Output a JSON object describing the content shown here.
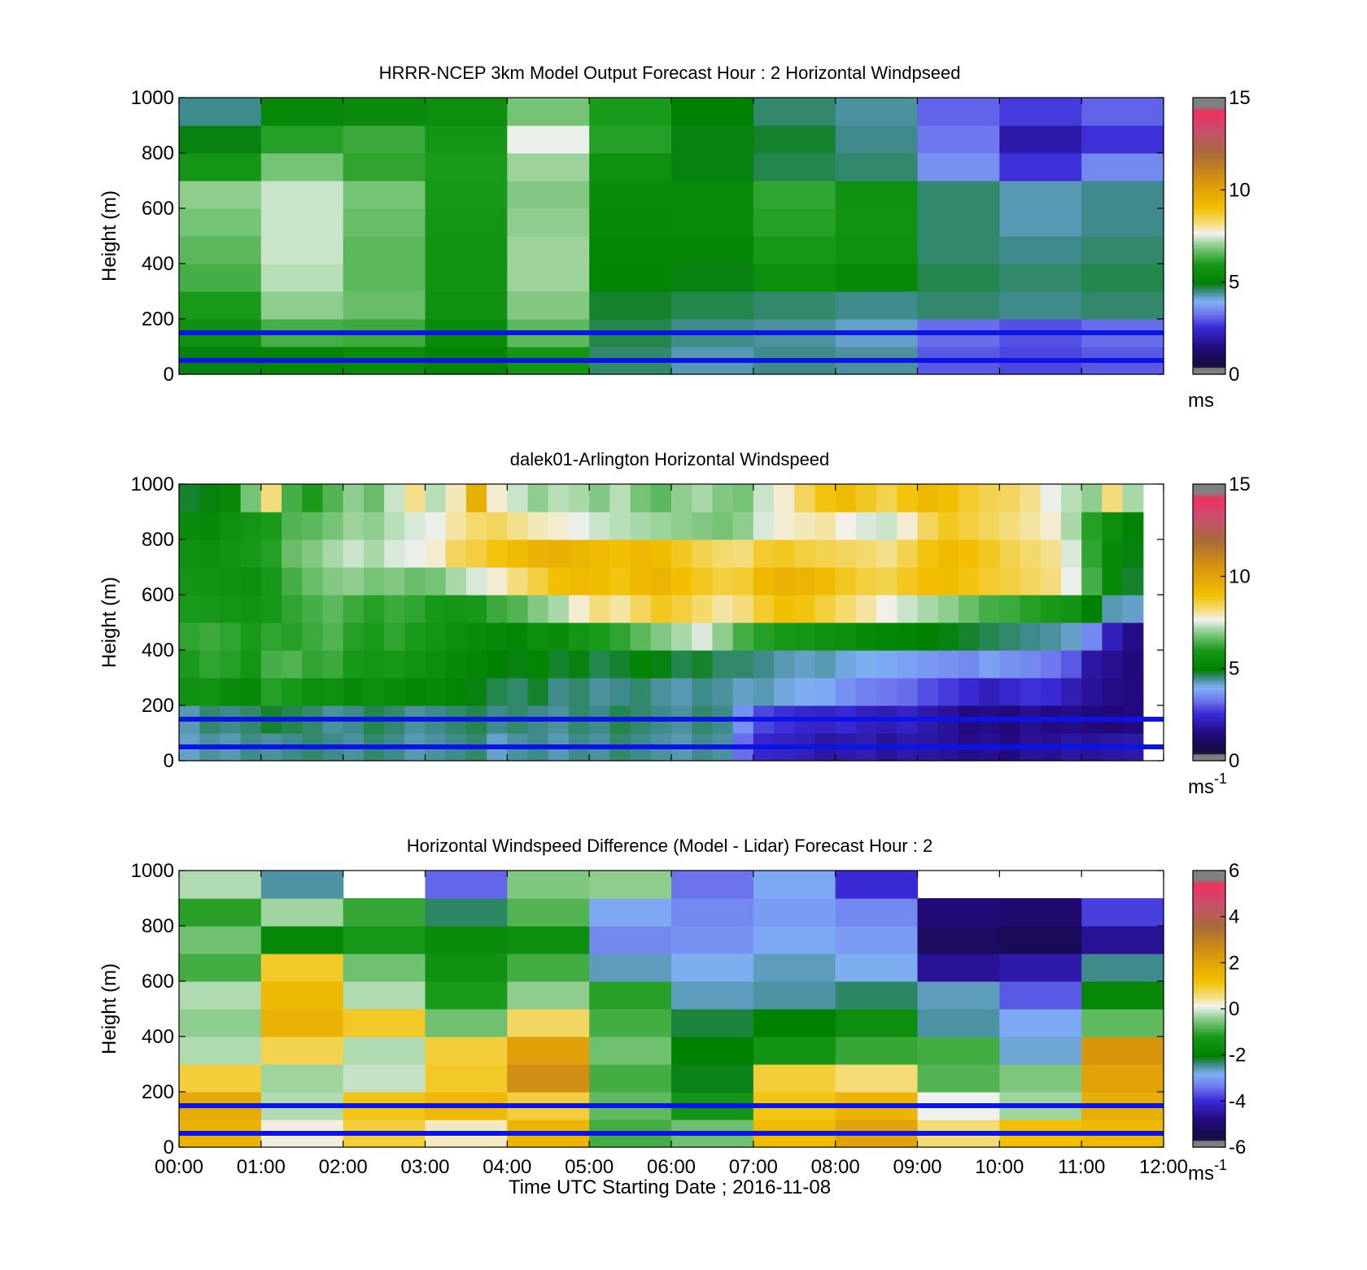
{
  "figure": {
    "xlabel": "Time UTC  Starting Date ; 2016-11-08",
    "x_ticks": [
      "00:00",
      "01:00",
      "02:00",
      "03:00",
      "04:00",
      "05:00",
      "06:00",
      "07:00",
      "08:00",
      "09:00",
      "10:00",
      "11:00",
      "12:00"
    ]
  },
  "chart_data": [
    {
      "type": "heatmap",
      "title": "HRRR-NCEP 3km Model Output   Forecast Hour : 2 Horizontal Windpseed",
      "ylabel": "Height (m)",
      "y_ticks": [
        "0",
        "200",
        "400",
        "600",
        "800",
        "1000"
      ],
      "ylim": [
        0,
        1000
      ],
      "xlim": [
        "00:00",
        "12:00"
      ],
      "colorbar": {
        "min": 0,
        "max": 15,
        "ticks": [
          "0",
          "5",
          "10",
          "15"
        ],
        "unit": "ms",
        "unit_sup": ""
      },
      "reference_lines_m": [
        50,
        150
      ],
      "reference_line_color": "#0a14e6",
      "time_bins": [
        "00:00",
        "01:00",
        "02:00",
        "03:00",
        "04:00",
        "05:00",
        "06:00",
        "07:00",
        "08:00",
        "09:00",
        "10:00",
        "11:00"
      ],
      "height_levels_m": [
        0,
        100,
        200,
        300,
        400,
        500,
        600,
        700,
        800,
        900,
        1000
      ],
      "values": [
        [
          4.9,
          5.2,
          5.4,
          5.1,
          5.8,
          4.6,
          4.3,
          4.5,
          4.4,
          3.0,
          2.8,
          3.0
        ],
        [
          5.6,
          6.4,
          6.3,
          5.4,
          6.6,
          4.7,
          4.5,
          4.4,
          4.2,
          3.2,
          2.9,
          3.2
        ],
        [
          6.0,
          7.0,
          6.7,
          5.6,
          6.9,
          4.8,
          4.7,
          4.6,
          4.5,
          4.6,
          4.5,
          4.6
        ],
        [
          6.4,
          7.3,
          6.6,
          5.7,
          7.1,
          5.1,
          4.9,
          5.5,
          5.3,
          4.7,
          4.6,
          4.7
        ],
        [
          6.6,
          7.4,
          6.6,
          5.7,
          7.1,
          5.2,
          5.2,
          5.9,
          5.6,
          4.6,
          4.5,
          4.6
        ],
        [
          6.8,
          7.4,
          6.7,
          5.8,
          7.0,
          5.3,
          5.4,
          6.1,
          5.7,
          4.6,
          4.3,
          4.5
        ],
        [
          7.0,
          7.4,
          6.8,
          5.9,
          6.9,
          5.4,
          5.4,
          6.2,
          5.6,
          4.6,
          4.3,
          4.5
        ],
        [
          5.8,
          6.8,
          6.2,
          6.0,
          7.1,
          5.6,
          4.9,
          4.7,
          4.6,
          3.6,
          2.6,
          3.5
        ],
        [
          4.9,
          6.1,
          6.3,
          5.8,
          7.6,
          6.1,
          4.9,
          4.8,
          4.5,
          3.3,
          2.0,
          2.6
        ],
        [
          4.5,
          5.3,
          5.4,
          5.5,
          6.8,
          6.0,
          5.0,
          4.6,
          4.4,
          3.1,
          2.7,
          3.1
        ]
      ]
    },
    {
      "type": "heatmap",
      "title": "dalek01-Arlington  Horizontal Windspeed",
      "ylabel": "Height (m)",
      "y_ticks": [
        "0",
        "200",
        "400",
        "600",
        "800",
        "1000"
      ],
      "ylim": [
        0,
        1000
      ],
      "xlim": [
        "00:00",
        "12:00"
      ],
      "colorbar": {
        "min": 0,
        "max": 15,
        "ticks": [
          "0",
          "5",
          "10",
          "15"
        ],
        "unit": "ms",
        "unit_sup": "-1"
      },
      "reference_lines_m": [
        50,
        150
      ],
      "reference_line_color": "#0a14e6",
      "data_end": "11:45",
      "time_bins": [
        "00:00",
        "00:15",
        "00:30",
        "00:45",
        "01:00",
        "01:15",
        "01:30",
        "01:45",
        "02:00",
        "02:15",
        "02:30",
        "02:45",
        "03:00",
        "03:15",
        "03:30",
        "03:45",
        "04:00",
        "04:15",
        "04:30",
        "04:45",
        "05:00",
        "05:15",
        "05:30",
        "05:45",
        "06:00",
        "06:15",
        "06:30",
        "06:45",
        "07:00",
        "07:15",
        "07:30",
        "07:45",
        "08:00",
        "08:15",
        "08:30",
        "08:45",
        "09:00",
        "09:15",
        "09:30",
        "09:45",
        "10:00",
        "10:15",
        "10:30",
        "10:45",
        "11:00",
        "11:15",
        "11:30"
      ],
      "height_levels_m": [
        0,
        100,
        200,
        300,
        400,
        500,
        600,
        700,
        800,
        900,
        1000
      ],
      "values": [
        [
          4.2,
          4.4,
          4.3,
          4.5,
          4.4,
          4.5,
          4.6,
          4.5,
          4.4,
          4.6,
          4.5,
          4.3,
          4.4,
          4.5,
          4.6,
          4.2,
          4.4,
          4.5,
          4.3,
          4.5,
          4.4,
          4.6,
          4.5,
          4.4,
          4.3,
          4.5,
          4.4,
          3.2,
          2.4,
          2.3,
          2.2,
          1.9,
          2.0,
          2.1,
          1.8,
          2.0,
          1.9,
          1.8,
          1.6,
          1.7,
          1.5,
          1.8,
          1.7,
          1.9,
          1.8,
          1.9,
          2.0
        ],
        [
          4.3,
          4.6,
          4.5,
          4.6,
          4.8,
          4.7,
          4.6,
          4.4,
          4.5,
          4.7,
          4.6,
          4.4,
          4.5,
          4.6,
          4.7,
          4.5,
          4.6,
          4.5,
          4.4,
          4.6,
          4.5,
          4.7,
          4.6,
          4.5,
          4.4,
          4.6,
          4.5,
          3.6,
          2.8,
          2.6,
          2.4,
          2.3,
          2.5,
          2.2,
          2.1,
          2.3,
          2.0,
          1.8,
          1.5,
          1.6,
          1.4,
          1.7,
          1.5,
          1.6,
          1.4,
          1.3,
          1.5
        ],
        [
          5.6,
          5.7,
          5.4,
          5.3,
          6.1,
          5.9,
          5.5,
          5.6,
          5.3,
          5.5,
          5.4,
          5.2,
          5.3,
          5.1,
          4.9,
          4.7,
          4.6,
          4.8,
          4.5,
          4.6,
          4.4,
          4.5,
          4.6,
          4.4,
          4.3,
          4.5,
          4.4,
          4.2,
          4.3,
          4.1,
          4.0,
          3.9,
          3.6,
          3.4,
          3.3,
          3.2,
          2.9,
          2.7,
          2.5,
          2.2,
          2.4,
          2.6,
          2.5,
          2.1,
          1.8,
          1.6,
          1.5
        ],
        [
          6.0,
          6.2,
          6.1,
          5.8,
          6.4,
          6.5,
          6.2,
          6.3,
          5.9,
          5.8,
          5.9,
          5.7,
          5.5,
          5.3,
          5.2,
          5.0,
          4.9,
          5.1,
          4.8,
          4.9,
          4.7,
          4.8,
          5.1,
          4.9,
          4.7,
          4.8,
          4.6,
          4.6,
          4.5,
          4.3,
          4.2,
          4.3,
          4.1,
          4.0,
          3.9,
          3.8,
          3.7,
          3.6,
          3.5,
          3.8,
          3.6,
          3.5,
          3.3,
          3.0,
          1.9,
          1.7,
          1.4
        ],
        [
          6.2,
          6.3,
          6.2,
          6.0,
          6.2,
          6.1,
          6.3,
          6.5,
          6.1,
          6.0,
          6.2,
          6.0,
          5.8,
          5.5,
          5.4,
          5.3,
          5.2,
          5.5,
          5.4,
          5.8,
          6.0,
          6.2,
          6.6,
          6.9,
          7.2,
          7.5,
          7.0,
          6.4,
          6.1,
          5.9,
          5.8,
          5.6,
          5.5,
          5.3,
          5.2,
          5.1,
          5.0,
          4.9,
          4.8,
          4.7,
          4.6,
          4.5,
          4.4,
          4.2,
          3.5,
          2.2,
          1.6
        ],
        [
          6.0,
          5.9,
          5.8,
          5.7,
          5.9,
          6.2,
          6.4,
          6.6,
          6.3,
          6.1,
          6.3,
          6.2,
          5.9,
          5.8,
          5.9,
          6.3,
          6.5,
          6.9,
          7.2,
          7.8,
          8.2,
          8.0,
          8.4,
          8.8,
          8.6,
          8.3,
          8.0,
          8.2,
          8.7,
          9.0,
          8.9,
          8.6,
          8.3,
          8.0,
          7.7,
          7.4,
          7.2,
          7.0,
          6.7,
          6.4,
          6.3,
          6.1,
          5.9,
          5.7,
          5.0,
          4.3,
          4.2
        ],
        [
          5.8,
          5.7,
          5.6,
          5.5,
          5.9,
          6.4,
          6.7,
          6.9,
          7.0,
          6.8,
          6.9,
          6.7,
          6.8,
          7.2,
          7.5,
          7.8,
          8.2,
          8.6,
          9.0,
          9.2,
          9.1,
          8.9,
          9.3,
          9.4,
          9.0,
          8.8,
          8.6,
          8.7,
          9.3,
          9.5,
          9.4,
          9.2,
          8.8,
          8.6,
          8.5,
          8.8,
          9.0,
          9.1,
          8.9,
          8.7,
          8.6,
          8.4,
          8.2,
          7.6,
          6.4,
          5.3,
          4.8
        ],
        [
          5.6,
          5.5,
          5.7,
          5.9,
          6.1,
          6.7,
          6.9,
          7.2,
          7.4,
          7.2,
          7.5,
          7.6,
          7.8,
          8.4,
          8.6,
          8.9,
          9.2,
          9.5,
          9.6,
          9.4,
          9.2,
          9.0,
          9.3,
          9.1,
          8.8,
          8.5,
          8.3,
          8.2,
          8.7,
          8.8,
          8.6,
          8.5,
          8.4,
          8.3,
          8.1,
          8.5,
          8.9,
          9.2,
          9.0,
          8.8,
          8.5,
          8.3,
          8.1,
          7.5,
          6.2,
          5.3,
          4.9
        ],
        [
          5.4,
          5.3,
          5.6,
          5.8,
          6.0,
          6.5,
          6.6,
          6.8,
          7.1,
          7.0,
          7.3,
          7.5,
          7.6,
          8.0,
          8.3,
          8.4,
          8.1,
          7.9,
          7.8,
          7.6,
          7.4,
          7.3,
          7.2,
          7.1,
          7.0,
          6.9,
          6.8,
          7.0,
          7.5,
          7.8,
          7.9,
          8.0,
          7.7,
          7.5,
          7.4,
          7.8,
          8.4,
          8.8,
          8.6,
          8.4,
          8.2,
          8.0,
          7.8,
          7.2,
          6.1,
          5.5,
          5.1
        ],
        [
          4.8,
          4.9,
          5.3,
          6.8,
          8.2,
          6.4,
          6.0,
          6.5,
          7.0,
          6.7,
          7.4,
          8.1,
          7.3,
          7.9,
          9.6,
          7.8,
          7.4,
          7.0,
          7.3,
          7.2,
          6.9,
          7.3,
          6.8,
          6.6,
          7.0,
          7.2,
          6.9,
          6.8,
          7.4,
          7.8,
          8.4,
          8.9,
          9.2,
          8.8,
          8.5,
          8.9,
          9.3,
          9.0,
          8.7,
          8.5,
          8.4,
          8.1,
          7.6,
          7.3,
          7.0,
          8.2,
          7.2
        ]
      ]
    },
    {
      "type": "heatmap",
      "title": "Horizontal Windspeed Difference (Model - Lidar) Forecast Hour : 2",
      "ylabel": "Height (m)",
      "y_ticks": [
        "0",
        "200",
        "400",
        "600",
        "800",
        "1000"
      ],
      "ylim": [
        0,
        1000
      ],
      "xlim": [
        "00:00",
        "12:00"
      ],
      "colorbar": {
        "min": -6,
        "max": 6,
        "ticks": [
          "-6",
          "-4",
          "-2",
          "0",
          "2",
          "4",
          "6"
        ],
        "unit": "ms",
        "unit_sup": "-1"
      },
      "reference_lines_m": [
        50,
        150
      ],
      "reference_line_color": "#0a14e6",
      "time_bins": [
        "00:00",
        "01:00",
        "02:00",
        "03:00",
        "04:00",
        "05:00",
        "06:00",
        "07:00",
        "08:00",
        "09:00",
        "10:00",
        "11:00"
      ],
      "height_levels_m": [
        0,
        100,
        200,
        300,
        400,
        500,
        600,
        700,
        800,
        900,
        1000
      ],
      "values": [
        [
          1.6,
          0.2,
          0.9,
          0.3,
          1.5,
          -0.9,
          -0.6,
          1.3,
          2.0,
          0.6,
          1.2,
          1.4
        ],
        [
          1.8,
          -0.2,
          1.1,
          1.4,
          0.9,
          -0.7,
          -1.4,
          1.1,
          1.5,
          0.1,
          -0.3,
          1.7
        ],
        [
          0.9,
          -0.3,
          -0.1,
          1.0,
          2.6,
          -0.9,
          -2.1,
          0.9,
          0.6,
          -0.8,
          -0.5,
          2.0
        ],
        [
          -0.2,
          0.8,
          -0.2,
          0.9,
          2.1,
          -0.6,
          -2.0,
          -1.4,
          -1.0,
          -0.9,
          -2.7,
          2.4
        ],
        [
          -0.4,
          1.6,
          1.0,
          -0.6,
          0.7,
          -0.9,
          -2.2,
          -2.0,
          -1.6,
          -2.5,
          -2.9,
          -0.7
        ],
        [
          -0.2,
          1.4,
          -0.2,
          -1.2,
          -0.4,
          -1.1,
          -2.6,
          -2.5,
          -2.3,
          -2.6,
          -3.6,
          -1.8
        ],
        [
          -0.9,
          1.0,
          -0.6,
          -1.5,
          -0.9,
          -2.6,
          -2.8,
          -2.6,
          -2.8,
          -4.6,
          -4.4,
          -2.4
        ],
        [
          -0.6,
          -1.8,
          -1.3,
          -1.7,
          -1.6,
          -3.2,
          -3.1,
          -2.9,
          -3.0,
          -5.2,
          -5.3,
          -4.6
        ],
        [
          -1.1,
          -0.3,
          -1.0,
          -2.3,
          -0.8,
          -2.9,
          -3.2,
          -3.0,
          -3.2,
          -4.9,
          -5.0,
          -3.8
        ],
        [
          -0.2,
          -2.5,
          null,
          -3.5,
          -0.5,
          -0.4,
          -3.4,
          -2.9,
          -4.0,
          null,
          null,
          null
        ]
      ]
    }
  ]
}
